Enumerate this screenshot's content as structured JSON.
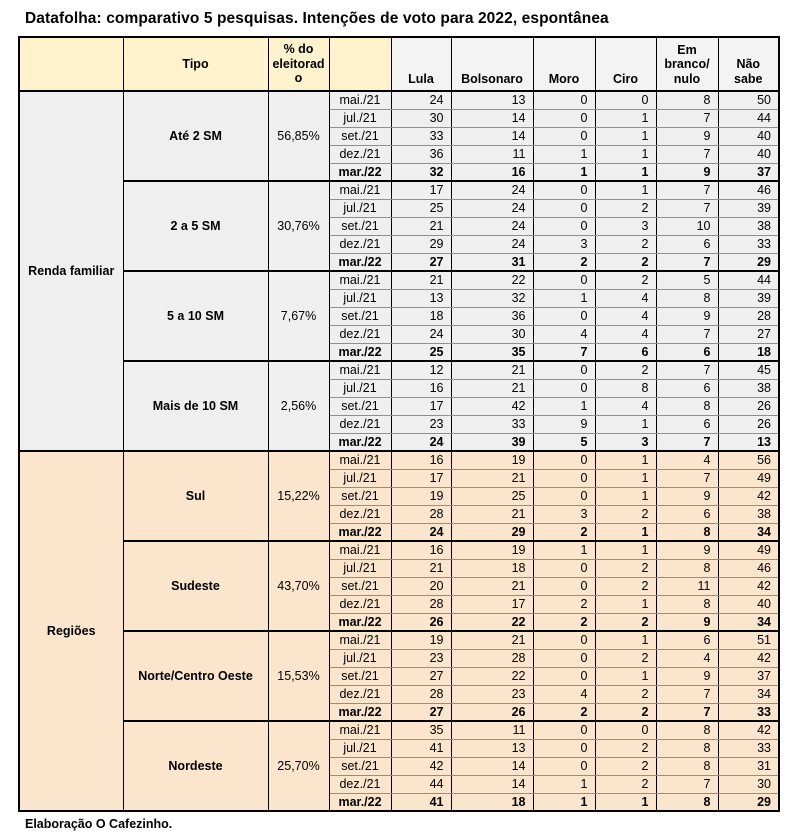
{
  "title": "Datafolha: comparativo 5 pesquisas. Intenções de voto para 2022, espontânea",
  "footer": "Elaboração O Cafezinho.",
  "colors": {
    "header_yellow": "#fff2cc",
    "header_gray": "#f3f3f3",
    "group_gray": "#efefef",
    "group_peach": "#fce5cd",
    "grid_dark": "#000000",
    "grid_light": "#8f8f8f"
  },
  "chart_data": {
    "type": "table",
    "title": "Datafolha: comparativo 5 pesquisas. Intenções de voto para 2022, espontânea",
    "header": {
      "tipo": "Tipo",
      "electorate": "% do eleitorado",
      "candidates": [
        "Lula",
        "Bolsonaro",
        "Moro",
        "Ciro",
        "Em branco/nulo",
        "Não sabe"
      ]
    },
    "date_labels": [
      "mai./21",
      "jul./21",
      "set./21",
      "dez./21",
      "mar./22"
    ],
    "groups": [
      {
        "name": "Renda familiar",
        "theme": "gray",
        "segments": [
          {
            "tipo": "Até 2 SM",
            "electorate": "56,85%",
            "rows": [
              {
                "date": "mai./21",
                "values": [
                  24,
                  13,
                  0,
                  0,
                  8,
                  50
                ]
              },
              {
                "date": "jul./21",
                "values": [
                  30,
                  14,
                  0,
                  1,
                  7,
                  44
                ]
              },
              {
                "date": "set./21",
                "values": [
                  33,
                  14,
                  0,
                  1,
                  9,
                  40
                ]
              },
              {
                "date": "dez./21",
                "values": [
                  36,
                  11,
                  1,
                  1,
                  7,
                  40
                ]
              },
              {
                "date": "mar./22",
                "values": [
                  32,
                  16,
                  1,
                  1,
                  9,
                  37
                ]
              }
            ]
          },
          {
            "tipo": "2 a 5 SM",
            "electorate": "30,76%",
            "rows": [
              {
                "date": "mai./21",
                "values": [
                  17,
                  24,
                  0,
                  1,
                  7,
                  46
                ]
              },
              {
                "date": "jul./21",
                "values": [
                  25,
                  24,
                  0,
                  2,
                  7,
                  39
                ]
              },
              {
                "date": "set./21",
                "values": [
                  21,
                  24,
                  0,
                  3,
                  10,
                  38
                ]
              },
              {
                "date": "dez./21",
                "values": [
                  29,
                  24,
                  3,
                  2,
                  6,
                  33
                ]
              },
              {
                "date": "mar./22",
                "values": [
                  27,
                  31,
                  2,
                  2,
                  7,
                  29
                ]
              }
            ]
          },
          {
            "tipo": "5 a 10 SM",
            "electorate": "7,67%",
            "rows": [
              {
                "date": "mai./21",
                "values": [
                  21,
                  22,
                  0,
                  2,
                  5,
                  44
                ]
              },
              {
                "date": "jul./21",
                "values": [
                  13,
                  32,
                  1,
                  4,
                  8,
                  39
                ]
              },
              {
                "date": "set./21",
                "values": [
                  18,
                  36,
                  0,
                  4,
                  9,
                  28
                ]
              },
              {
                "date": "dez./21",
                "values": [
                  24,
                  30,
                  4,
                  4,
                  7,
                  27
                ]
              },
              {
                "date": "mar./22",
                "values": [
                  25,
                  35,
                  7,
                  6,
                  6,
                  18
                ]
              }
            ]
          },
          {
            "tipo": "Mais de 10 SM",
            "electorate": "2,56%",
            "rows": [
              {
                "date": "mai./21",
                "values": [
                  12,
                  21,
                  0,
                  2,
                  7,
                  45
                ]
              },
              {
                "date": "jul./21",
                "values": [
                  16,
                  21,
                  0,
                  8,
                  6,
                  38
                ]
              },
              {
                "date": "set./21",
                "values": [
                  17,
                  42,
                  1,
                  4,
                  8,
                  26
                ]
              },
              {
                "date": "dez./21",
                "values": [
                  23,
                  33,
                  9,
                  1,
                  6,
                  26
                ]
              },
              {
                "date": "mar./22",
                "values": [
                  24,
                  39,
                  5,
                  3,
                  7,
                  13
                ]
              }
            ]
          }
        ]
      },
      {
        "name": "Regiões",
        "theme": "peach",
        "segments": [
          {
            "tipo": "Sul",
            "electorate": "15,22%",
            "rows": [
              {
                "date": "mai./21",
                "values": [
                  16,
                  19,
                  0,
                  1,
                  4,
                  56
                ]
              },
              {
                "date": "jul./21",
                "values": [
                  17,
                  21,
                  0,
                  1,
                  7,
                  49
                ]
              },
              {
                "date": "set./21",
                "values": [
                  19,
                  25,
                  0,
                  1,
                  9,
                  42
                ]
              },
              {
                "date": "dez./21",
                "values": [
                  28,
                  21,
                  3,
                  2,
                  6,
                  38
                ]
              },
              {
                "date": "mar./22",
                "values": [
                  24,
                  29,
                  2,
                  1,
                  8,
                  34
                ]
              }
            ]
          },
          {
            "tipo": "Sudeste",
            "electorate": "43,70%",
            "rows": [
              {
                "date": "mai./21",
                "values": [
                  16,
                  19,
                  1,
                  1,
                  9,
                  49
                ]
              },
              {
                "date": "jul./21",
                "values": [
                  21,
                  18,
                  0,
                  2,
                  8,
                  46
                ]
              },
              {
                "date": "set./21",
                "values": [
                  20,
                  21,
                  0,
                  2,
                  11,
                  42
                ]
              },
              {
                "date": "dez./21",
                "values": [
                  28,
                  17,
                  2,
                  1,
                  8,
                  40
                ]
              },
              {
                "date": "mar./22",
                "values": [
                  26,
                  22,
                  2,
                  2,
                  9,
                  34
                ]
              }
            ]
          },
          {
            "tipo": "Norte/Centro Oeste",
            "electorate": "15,53%",
            "rows": [
              {
                "date": "mai./21",
                "values": [
                  19,
                  21,
                  0,
                  1,
                  6,
                  51
                ]
              },
              {
                "date": "jul./21",
                "values": [
                  23,
                  28,
                  0,
                  2,
                  4,
                  42
                ]
              },
              {
                "date": "set./21",
                "values": [
                  27,
                  22,
                  0,
                  1,
                  9,
                  37
                ]
              },
              {
                "date": "dez./21",
                "values": [
                  28,
                  23,
                  4,
                  2,
                  7,
                  34
                ]
              },
              {
                "date": "mar./22",
                "values": [
                  27,
                  26,
                  2,
                  2,
                  7,
                  33
                ]
              }
            ]
          },
          {
            "tipo": "Nordeste",
            "electorate": "25,70%",
            "rows": [
              {
                "date": "mai./21",
                "values": [
                  35,
                  11,
                  0,
                  0,
                  8,
                  42
                ]
              },
              {
                "date": "jul./21",
                "values": [
                  41,
                  13,
                  0,
                  2,
                  8,
                  33
                ]
              },
              {
                "date": "set./21",
                "values": [
                  42,
                  14,
                  0,
                  2,
                  8,
                  31
                ]
              },
              {
                "date": "dez./21",
                "values": [
                  44,
                  14,
                  1,
                  2,
                  7,
                  30
                ]
              },
              {
                "date": "mar./22",
                "values": [
                  41,
                  18,
                  1,
                  1,
                  8,
                  29
                ]
              }
            ]
          }
        ]
      }
    ]
  }
}
